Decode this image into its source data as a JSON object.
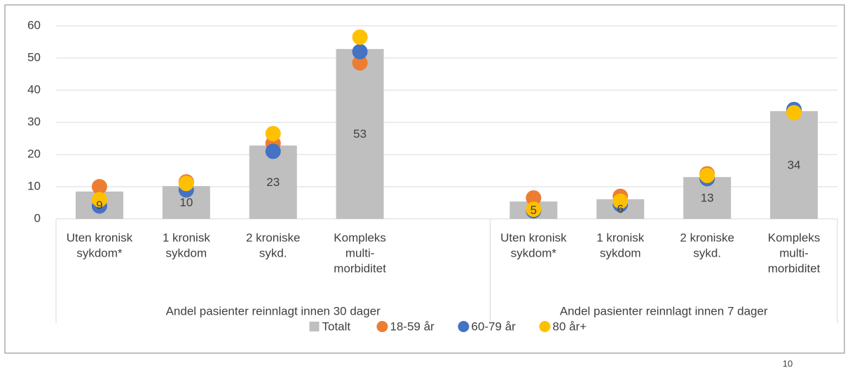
{
  "chart_data": {
    "type": "bar",
    "categories": [
      [
        "Uten kronisk",
        "sykdom*"
      ],
      [
        "1 kronisk",
        "sykdom"
      ],
      [
        "2 kroniske",
        "sykd."
      ],
      [
        "Kompleks",
        "multi-",
        "morbiditet"
      ],
      null,
      [
        "Uten kronisk",
        "sykdom*"
      ],
      [
        "1 kronisk",
        "sykdom"
      ],
      [
        "2 kroniske",
        "sykd."
      ],
      [
        "Kompleks",
        "multi-",
        "morbiditet"
      ]
    ],
    "groups": [
      {
        "label": "Andel pasienter reinnlagt innen 30 dager",
        "span": [
          0,
          4
        ]
      },
      {
        "label": "Andel pasienter reinnlagt innen 7 dager",
        "span": [
          5,
          8
        ]
      }
    ],
    "series": [
      {
        "name": "Totalt",
        "color": "#bfbfbf",
        "mark": "bar",
        "values": [
          8.5,
          10.2,
          22.8,
          52.8,
          null,
          5.4,
          6.1,
          13,
          33.5
        ],
        "value_labels": [
          "9",
          "10",
          "23",
          "53",
          null,
          "5",
          "6",
          "13",
          "34"
        ]
      },
      {
        "name": "18-59 år",
        "color": "#ed7d31",
        "mark": "dot",
        "values": [
          10,
          11.5,
          23.5,
          48.5,
          null,
          6.5,
          7,
          14,
          33.5
        ]
      },
      {
        "name": "60-79 år",
        "color": "#4472c4",
        "mark": "dot",
        "values": [
          4,
          9,
          21,
          52,
          null,
          2.5,
          4.5,
          12.5,
          34
        ]
      },
      {
        "name": "80 år+",
        "color": "#ffc000",
        "mark": "dot",
        "values": [
          6,
          11,
          26.5,
          56.5,
          null,
          3,
          5.5,
          13.5,
          33
        ]
      }
    ],
    "ylim": [
      0,
      60
    ],
    "yticks": [
      0,
      10,
      20,
      30,
      40,
      50,
      60
    ],
    "grid": true,
    "legend": "bottom",
    "footnote": "10"
  }
}
